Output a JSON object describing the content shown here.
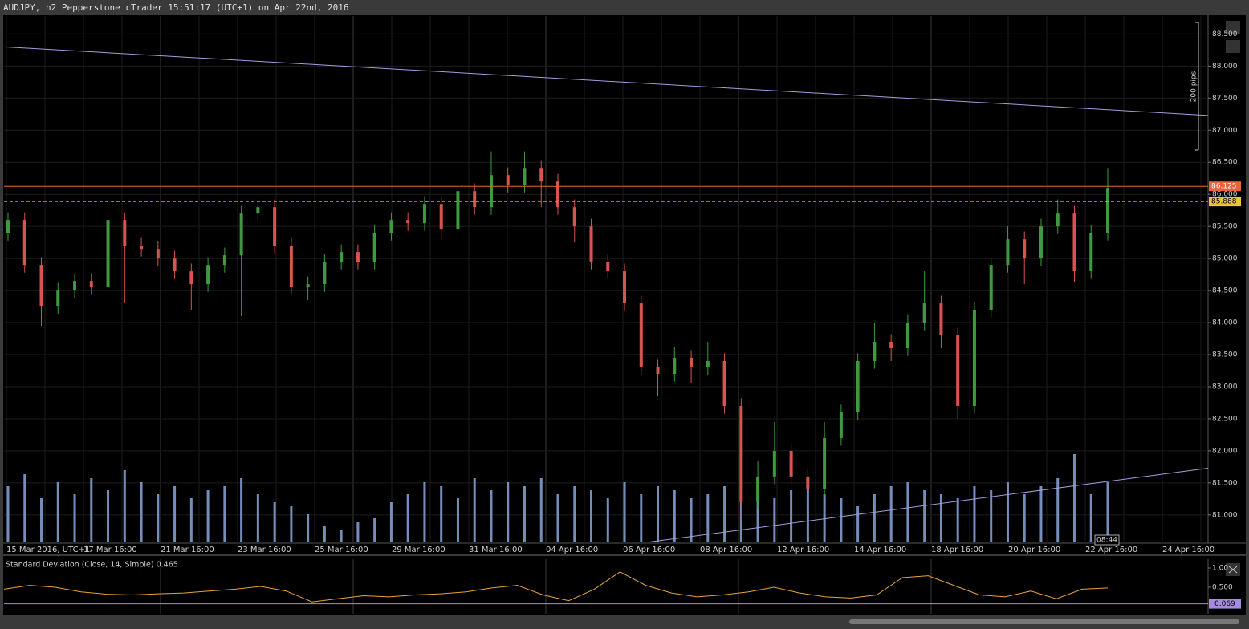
{
  "header": {
    "title": "AUDJPY, h2 Pepperstone cTrader 15:51:17 (UTC+1) on Apr 22nd, 2016"
  },
  "chart_data": [
    {
      "type": "candlestick",
      "open": [
        85.4,
        85.6,
        84.9,
        84.25,
        84.5,
        84.65,
        84.55,
        85.6,
        85.2,
        85.15,
        85.0,
        84.8,
        84.6,
        84.9,
        85.05,
        85.7,
        85.8,
        85.2,
        84.55,
        84.6,
        84.95,
        85.1,
        84.95,
        85.4,
        85.6,
        85.55,
        85.85,
        85.45,
        86.05,
        85.8,
        86.3,
        86.15,
        86.4,
        86.2,
        85.8,
        85.5,
        84.95,
        84.8,
        84.3,
        83.3,
        83.2,
        83.45,
        83.3,
        83.4,
        82.7,
        81.2,
        81.6,
        82.0,
        81.6,
        81.4,
        82.2,
        82.6,
        83.4,
        83.7,
        83.6,
        84.0,
        84.3,
        83.8,
        82.7,
        84.2,
        84.9,
        85.3,
        85.0,
        85.5,
        85.7,
        84.8,
        85.4
      ],
      "high": [
        85.72,
        85.72,
        85.02,
        84.62,
        84.77,
        84.77,
        85.9,
        85.72,
        85.32,
        85.27,
        85.12,
        84.92,
        85.02,
        85.17,
        85.82,
        85.92,
        85.92,
        85.32,
        84.72,
        85.07,
        85.22,
        85.22,
        85.52,
        85.72,
        85.72,
        85.97,
        85.97,
        86.17,
        86.17,
        86.67,
        86.42,
        86.67,
        86.52,
        86.32,
        85.92,
        85.62,
        85.07,
        84.92,
        84.42,
        83.42,
        83.62,
        83.57,
        83.7,
        83.52,
        82.82,
        81.85,
        82.45,
        82.12,
        81.72,
        82.45,
        82.72,
        83.52,
        84.0,
        83.82,
        84.12,
        84.8,
        84.42,
        83.92,
        84.32,
        85.02,
        85.5,
        85.42,
        85.62,
        85.92,
        85.82,
        85.52,
        86.4
      ],
      "low": [
        85.28,
        84.78,
        83.95,
        84.13,
        84.38,
        84.43,
        84.43,
        84.3,
        85.03,
        84.88,
        84.68,
        84.2,
        84.48,
        84.78,
        84.1,
        85.58,
        85.08,
        84.43,
        84.35,
        84.48,
        84.83,
        84.83,
        84.83,
        85.28,
        85.43,
        85.43,
        85.3,
        85.33,
        85.68,
        85.68,
        86.03,
        86.03,
        85.8,
        85.68,
        85.25,
        84.83,
        84.68,
        84.18,
        83.18,
        82.85,
        83.08,
        83.05,
        83.18,
        82.58,
        80.9,
        81.08,
        81.48,
        81.48,
        81.2,
        81.28,
        82.08,
        82.48,
        83.28,
        83.4,
        83.48,
        83.88,
        83.6,
        82.5,
        82.58,
        84.08,
        84.78,
        84.6,
        84.88,
        85.38,
        84.63,
        84.68,
        85.28
      ],
      "close": [
        85.6,
        84.9,
        84.25,
        84.5,
        84.65,
        84.55,
        85.6,
        85.2,
        85.15,
        85.0,
        84.8,
        84.6,
        84.9,
        85.05,
        85.7,
        85.8,
        85.2,
        84.55,
        84.6,
        84.95,
        85.1,
        84.95,
        85.4,
        85.6,
        85.55,
        85.85,
        85.45,
        86.05,
        85.8,
        86.3,
        86.15,
        86.4,
        86.2,
        85.8,
        85.5,
        84.95,
        84.8,
        84.3,
        83.3,
        83.2,
        83.45,
        83.3,
        83.4,
        82.7,
        81.2,
        81.6,
        82.0,
        81.6,
        81.4,
        82.2,
        82.6,
        83.4,
        83.7,
        83.6,
        84.0,
        84.3,
        83.8,
        82.7,
        84.2,
        84.9,
        85.3,
        85.0,
        85.5,
        85.7,
        84.8,
        85.4,
        86.1
      ],
      "up_color": "#3f9a3f",
      "down_color": "#d9534f",
      "volume": [
        70,
        85,
        55,
        75,
        60,
        80,
        65,
        90,
        75,
        60,
        70,
        55,
        65,
        70,
        80,
        60,
        50,
        45,
        35,
        20,
        15,
        25,
        30,
        50,
        60,
        75,
        70,
        55,
        80,
        65,
        75,
        70,
        80,
        60,
        70,
        65,
        55,
        75,
        60,
        70,
        65,
        55,
        60,
        70,
        80,
        75,
        55,
        65,
        70,
        60,
        55,
        45,
        60,
        70,
        75,
        65,
        60,
        55,
        70,
        65,
        75,
        60,
        70,
        80,
        110,
        60,
        75
      ],
      "volume_color": "#8aa6dc",
      "vlim": [
        0,
        100
      ],
      "ylim": [
        80.56,
        88.78
      ],
      "yticks": [
        {
          "value": 81.0,
          "label": "81.000"
        },
        {
          "value": 81.5,
          "label": "81.500"
        },
        {
          "value": 82.0,
          "label": "82.000"
        },
        {
          "value": 82.5,
          "label": "82.500"
        },
        {
          "value": 83.0,
          "label": "83.000"
        },
        {
          "value": 83.5,
          "label": "83.500"
        },
        {
          "value": 84.0,
          "label": "84.000"
        },
        {
          "value": 84.5,
          "label": "84.500"
        },
        {
          "value": 85.0,
          "label": "85.000"
        },
        {
          "value": 85.5,
          "label": "85.500"
        },
        {
          "value": 86.0,
          "label": "86.000"
        },
        {
          "value": 86.5,
          "label": "86.500"
        },
        {
          "value": 87.0,
          "label": "87.000"
        },
        {
          "value": 87.5,
          "label": "87.500"
        },
        {
          "value": 88.0,
          "label": "88.000"
        },
        {
          "value": 88.5,
          "label": "88.500"
        }
      ],
      "xticks": [
        "15 Mar 2016, UTC+1",
        "17 Mar 16:00",
        "21 Mar 16:00",
        "23 Mar 16:00",
        "25 Mar 16:00",
        "29 Mar 16:00",
        "31 Mar 16:00",
        "04 Apr 16:00",
        "06 Apr 16:00",
        "08 Apr 16:00",
        "12 Apr 16:00",
        "14 Apr 16:00",
        "18 Apr 16:00",
        "20 Apr 16:00",
        "22 Apr 16:00",
        "24 Apr 16:00"
      ],
      "levels": [
        {
          "value": 86.125,
          "label": "86.125",
          "color": "#e8643c",
          "style": "solid"
        },
        {
          "value": 85.888,
          "label": "85.888",
          "color": "#e8c53a",
          "style": "dashed"
        }
      ],
      "trendlines": [
        {
          "color": "#a79be0",
          "values": [
            88.3,
            87.23
          ]
        },
        {
          "color": "#a79be0",
          "values": [
            80.58,
            81.73
          ]
        }
      ],
      "annotations": [
        "200 pips",
        "08:44"
      ],
      "grid": true
    },
    {
      "type": "line",
      "title": "Standard Deviation (Close, 14, Simple) 0.465",
      "color": "#e8a23a",
      "values": [
        0.45,
        0.55,
        0.5,
        0.38,
        0.32,
        0.3,
        0.33,
        0.35,
        0.4,
        0.45,
        0.52,
        0.4,
        0.12,
        0.2,
        0.28,
        0.25,
        0.3,
        0.33,
        0.38,
        0.48,
        0.55,
        0.3,
        0.15,
        0.45,
        0.9,
        0.55,
        0.35,
        0.25,
        0.3,
        0.38,
        0.5,
        0.35,
        0.25,
        0.22,
        0.3,
        0.75,
        0.8,
        0.55,
        0.3,
        0.25,
        0.4,
        0.2,
        0.45,
        0.48
      ],
      "ylim": [
        -0.19,
        1.23
      ],
      "yticks": [
        {
          "value": 1.0,
          "label": "1.00"
        },
        {
          "value": 0.5,
          "label": "0.500"
        }
      ],
      "level": {
        "value": 0.069,
        "label": "0.069",
        "color": "#a48be0"
      }
    }
  ]
}
